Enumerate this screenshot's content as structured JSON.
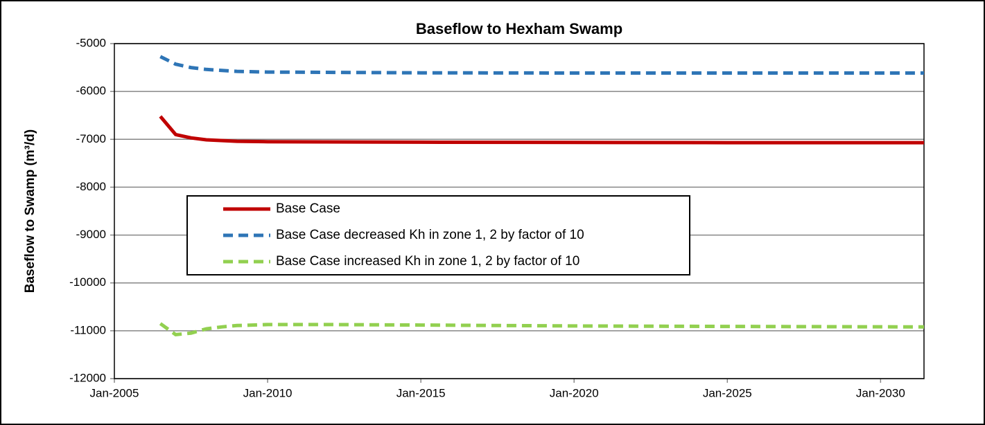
{
  "chart_data": {
    "type": "line",
    "title": "Baseflow to Hexham Swamp",
    "y_label": "Baseflow to Swamp (m³/d)",
    "xlim": [
      "2005-01",
      "2031-06"
    ],
    "xticks": [
      {
        "value": "2005-01",
        "label": "Jan-2005"
      },
      {
        "value": "2010-01",
        "label": "Jan-2010"
      },
      {
        "value": "2015-01",
        "label": "Jan-2015"
      },
      {
        "value": "2020-01",
        "label": "Jan-2020"
      },
      {
        "value": "2025-01",
        "label": "Jan-2025"
      },
      {
        "value": "2030-01",
        "label": "Jan-2030"
      }
    ],
    "ylim": [
      -12000,
      -5000
    ],
    "yticks": [
      -12000,
      -11000,
      -10000,
      -9000,
      -8000,
      -7000,
      -6000,
      -5000
    ],
    "grid": true,
    "legend": "center-left",
    "series": [
      {
        "name": "Base Case",
        "color": "#c00000",
        "style": "solid",
        "x": [
          "2006-07",
          "2007-01",
          "2007-07",
          "2008-01",
          "2009-01",
          "2010-01",
          "2015-01",
          "2020-01",
          "2025-01",
          "2031-06"
        ],
        "values": [
          -6520,
          -6900,
          -6970,
          -7010,
          -7040,
          -7050,
          -7060,
          -7065,
          -7070,
          -7070
        ]
      },
      {
        "name": "Base Case decreased Kh in zone 1, 2 by factor of 10",
        "color": "#2e75b6",
        "style": "dashed",
        "x": [
          "2006-07",
          "2007-01",
          "2007-07",
          "2008-01",
          "2009-01",
          "2010-01",
          "2015-01",
          "2020-01",
          "2025-01",
          "2031-06"
        ],
        "values": [
          -5270,
          -5430,
          -5500,
          -5540,
          -5580,
          -5595,
          -5610,
          -5615,
          -5615,
          -5615
        ]
      },
      {
        "name": "Base Case increased Kh in zone 1, 2 by factor of 10",
        "color": "#92d050",
        "style": "dashed",
        "x": [
          "2006-07",
          "2007-01",
          "2007-07",
          "2008-01",
          "2008-07",
          "2009-01",
          "2010-01",
          "2012-01",
          "2015-01",
          "2020-01",
          "2025-01",
          "2031-06"
        ],
        "values": [
          -10850,
          -11080,
          -11050,
          -10960,
          -10920,
          -10890,
          -10870,
          -10870,
          -10880,
          -10900,
          -10910,
          -10920
        ]
      }
    ]
  }
}
